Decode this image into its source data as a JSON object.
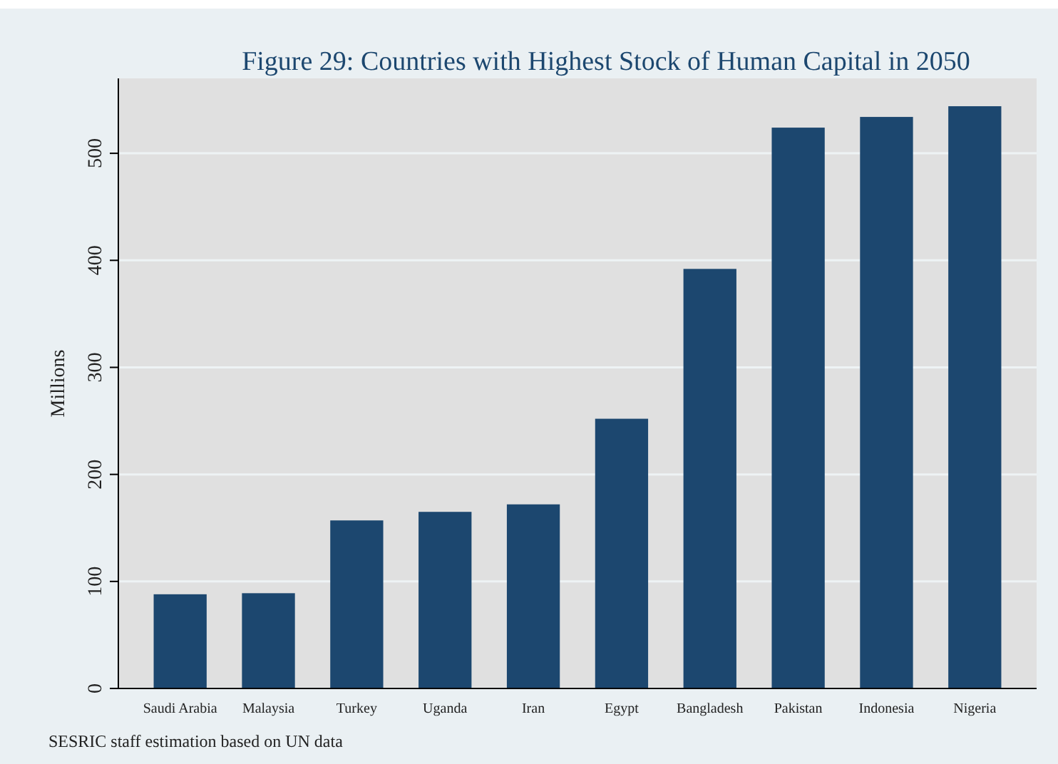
{
  "chart_data": {
    "type": "bar",
    "title": "Figure 29: Countries with Highest Stock of Human Capital in 2050",
    "ylabel": "Millions",
    "categories": [
      "Saudi Arabia",
      "Malaysia",
      "Turkey",
      "Uganda",
      "Iran",
      "Egypt",
      "Bangladesh",
      "Pakistan",
      "Indonesia",
      "Nigeria"
    ],
    "values": [
      88,
      89,
      157,
      165,
      172,
      252,
      392,
      524,
      534,
      544
    ],
    "color": "#1c476f",
    "ylim": [
      0,
      570
    ],
    "yticks": [
      0,
      100,
      200,
      300,
      400,
      500
    ],
    "grid": "y",
    "annotations": [
      "SESRIC staff estimation based on UN data"
    ]
  }
}
